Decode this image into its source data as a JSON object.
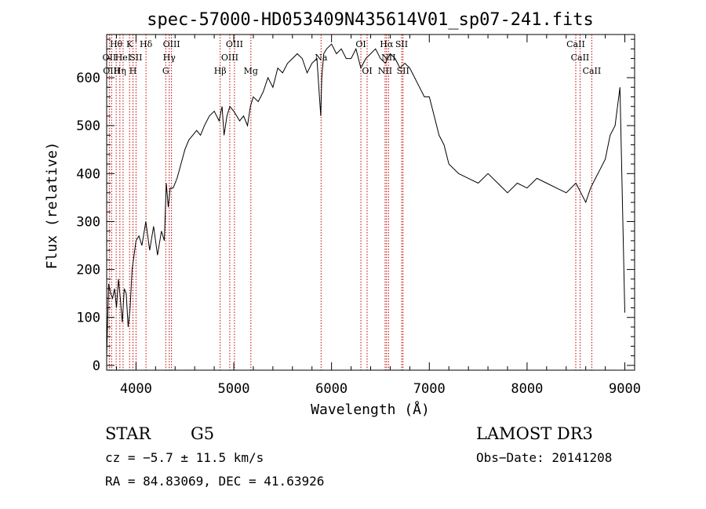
{
  "chart_data": {
    "type": "line",
    "title": "spec-57000-HD053409N435614V01_sp07-241.fits",
    "xlabel": "Wavelength (Å)",
    "ylabel": "Flux (relative)",
    "xlim": [
      3700,
      9100
    ],
    "ylim": [
      -10,
      690
    ],
    "xticks": [
      4000,
      5000,
      6000,
      7000,
      8000,
      9000
    ],
    "yticks": [
      0,
      100,
      200,
      300,
      400,
      500,
      600
    ],
    "grid": false,
    "line_color": "#000000",
    "marker_color": "#c00000",
    "series": [
      {
        "x": [
          3700,
          3720,
          3740,
          3760,
          3780,
          3800,
          3820,
          3840,
          3860,
          3880,
          3900,
          3920,
          3940,
          3960,
          3980,
          4000,
          4030,
          4060,
          4100,
          4140,
          4180,
          4220,
          4260,
          4290,
          4310,
          4330,
          4350,
          4380,
          4420,
          4460,
          4500,
          4540,
          4580,
          4620,
          4660,
          4700,
          4750,
          4800,
          4850,
          4880,
          4900,
          4930,
          4960,
          5000,
          5030,
          5060,
          5100,
          5140,
          5170,
          5200,
          5250,
          5300,
          5350,
          5400,
          5450,
          5500,
          5550,
          5600,
          5650,
          5700,
          5750,
          5800,
          5850,
          5890,
          5900,
          5920,
          5950,
          6000,
          6050,
          6100,
          6150,
          6200,
          6250,
          6300,
          6350,
          6400,
          6450,
          6500,
          6550,
          6600,
          6650,
          6700,
          6750,
          6800,
          6850,
          6900,
          6950,
          7000,
          7050,
          7100,
          7150,
          7200,
          7300,
          7400,
          7500,
          7600,
          7700,
          7800,
          7900,
          8000,
          8100,
          8200,
          8300,
          8400,
          8500,
          8550,
          8600,
          8650,
          8700,
          8750,
          8800,
          8850,
          8900,
          8950,
          9000
        ],
        "y": [
          20,
          170,
          150,
          140,
          160,
          120,
          180,
          140,
          90,
          160,
          150,
          80,
          120,
          200,
          230,
          260,
          270,
          250,
          300,
          240,
          290,
          230,
          280,
          260,
          380,
          330,
          370,
          370,
          390,
          420,
          450,
          470,
          480,
          490,
          480,
          500,
          520,
          530,
          510,
          540,
          480,
          520,
          540,
          530,
          520,
          510,
          520,
          500,
          540,
          560,
          550,
          570,
          600,
          580,
          620,
          610,
          630,
          640,
          650,
          640,
          610,
          630,
          640,
          520,
          600,
          650,
          660,
          670,
          650,
          660,
          640,
          640,
          660,
          620,
          640,
          650,
          660,
          640,
          630,
          650,
          640,
          620,
          630,
          620,
          600,
          580,
          560,
          560,
          520,
          480,
          460,
          420,
          400,
          390,
          380,
          400,
          380,
          360,
          380,
          370,
          390,
          380,
          370,
          360,
          380,
          360,
          340,
          370,
          390,
          410,
          430,
          480,
          500,
          580,
          110
        ]
      }
    ],
    "spectral_lines": [
      {
        "x": 3727,
        "label": "OII",
        "tier": 1
      },
      {
        "x": 3750,
        "label": "OIII",
        "tier": 2
      },
      {
        "x": 3797,
        "label": "Hθ",
        "tier": 0
      },
      {
        "x": 3835,
        "label": "Hη",
        "tier": 2
      },
      {
        "x": 3868,
        "label": "HeI",
        "tier": 1
      },
      {
        "x": 3934,
        "label": "K",
        "tier": 0
      },
      {
        "x": 3969,
        "label": "H",
        "tier": 2
      },
      {
        "x": 4000,
        "label": "SII",
        "tier": 1
      },
      {
        "x": 4102,
        "label": "Hδ",
        "tier": 0
      },
      {
        "x": 4304,
        "label": "G",
        "tier": 2
      },
      {
        "x": 4340,
        "label": "Hγ",
        "tier": 1
      },
      {
        "x": 4363,
        "label": "OIII",
        "tier": 0
      },
      {
        "x": 4861,
        "label": "Hβ",
        "tier": 2
      },
      {
        "x": 4959,
        "label": "OIII",
        "tier": 1
      },
      {
        "x": 5007,
        "label": "OIII",
        "tier": 0
      },
      {
        "x": 5175,
        "label": "Mg",
        "tier": 2
      },
      {
        "x": 5893,
        "label": "Na",
        "tier": 1
      },
      {
        "x": 6300,
        "label": "OI",
        "tier": 0
      },
      {
        "x": 6364,
        "label": "OI",
        "tier": 2
      },
      {
        "x": 6548,
        "label": "NII",
        "tier": 2
      },
      {
        "x": 6563,
        "label": "Hα",
        "tier": 0
      },
      {
        "x": 6583,
        "label": "NII",
        "tier": 1
      },
      {
        "x": 6717,
        "label": "SII",
        "tier": 0
      },
      {
        "x": 6731,
        "label": "SII",
        "tier": 2
      },
      {
        "x": 8498,
        "label": "CaII",
        "tier": 0
      },
      {
        "x": 8542,
        "label": "CaII",
        "tier": 1
      },
      {
        "x": 8662,
        "label": "CaII",
        "tier": 2
      }
    ]
  },
  "info": {
    "class": "STAR",
    "subclass": "G5",
    "survey": "LAMOST DR3",
    "cz": "cz = −5.7 ± 11.5 km/s",
    "obs_date": "Obs−Date: 20141208",
    "radec": "RA =  84.83069, DEC =  41.63926"
  }
}
